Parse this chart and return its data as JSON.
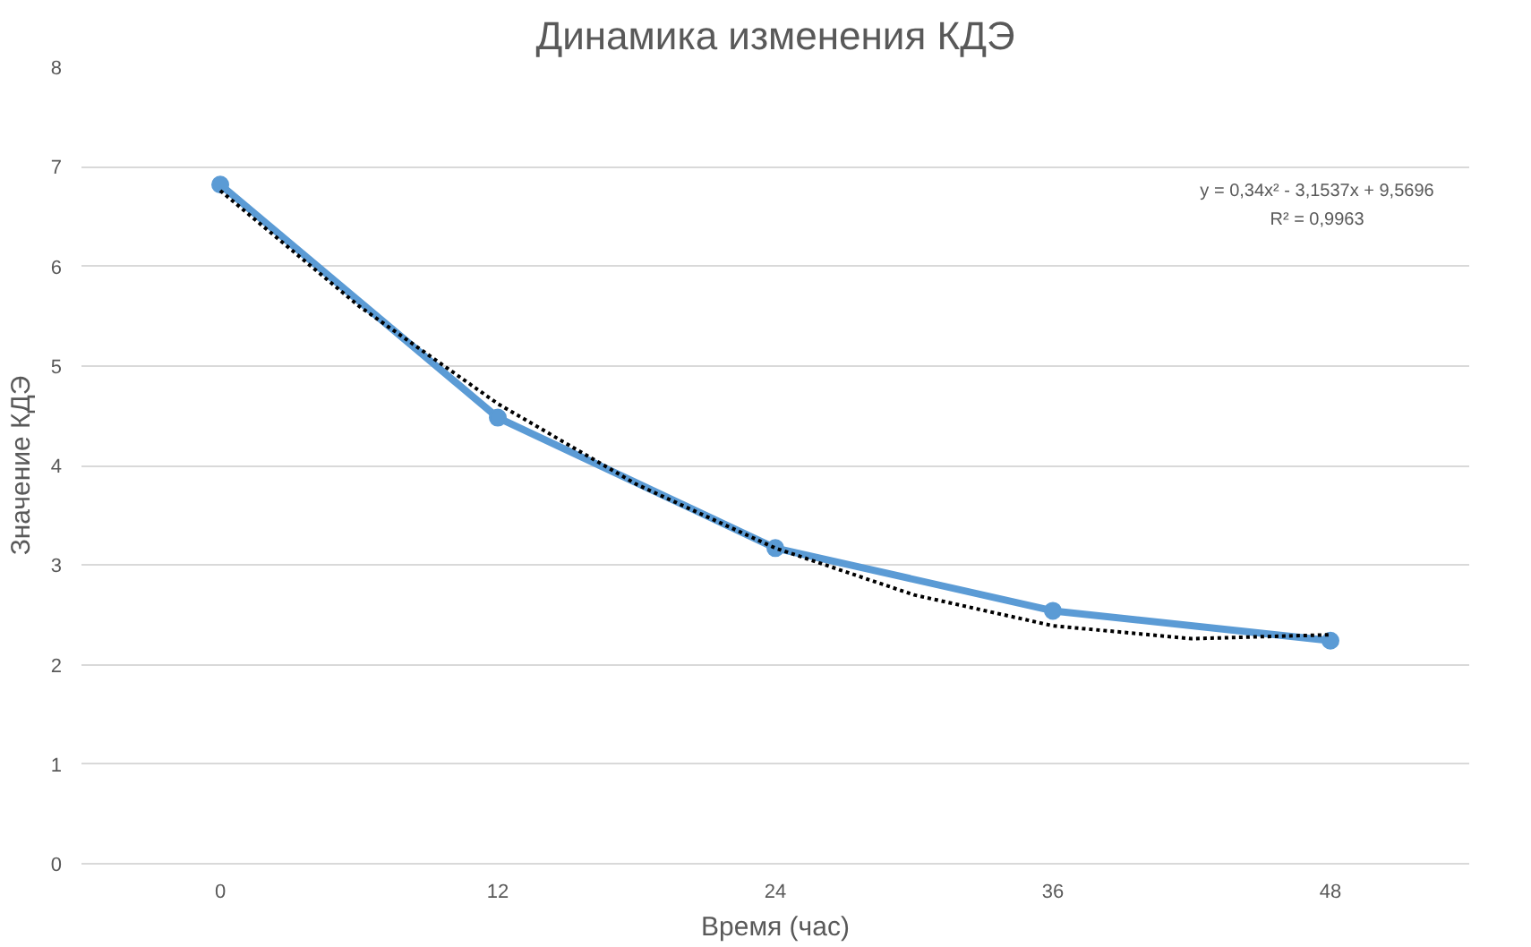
{
  "chart_data": {
    "type": "line",
    "title": "Динамика изменения КДЭ",
    "xlabel": "Время (час)",
    "ylabel": "Значение КДЭ",
    "x": [
      0,
      12,
      24,
      36,
      48
    ],
    "series": [
      {
        "color": "#5b9bd5",
        "values": [
          6.82,
          4.48,
          3.17,
          2.54,
          2.24
        ],
        "marker": "circle",
        "line_style": "solid"
      },
      {
        "type": "line",
        "color": "#000000",
        "x": [
          0,
          6,
          12,
          18,
          24,
          30,
          36,
          42,
          48
        ],
        "values": [
          6.76,
          5.6,
          4.62,
          3.81,
          3.17,
          2.7,
          2.39,
          2.26,
          2.3
        ],
        "marker": "none",
        "line_style": "dotted"
      }
    ],
    "xlim": [
      -6,
      54
    ],
    "xticks": [
      0,
      12,
      24,
      36,
      48
    ],
    "ylim": [
      0,
      8
    ],
    "yticks": [
      0,
      1,
      2,
      3,
      4,
      5,
      6,
      7,
      8
    ],
    "grid": "y",
    "annotations": [
      "y = 0,34x² - 3,1537x + 9,5696",
      "R² = 0,9963"
    ]
  }
}
